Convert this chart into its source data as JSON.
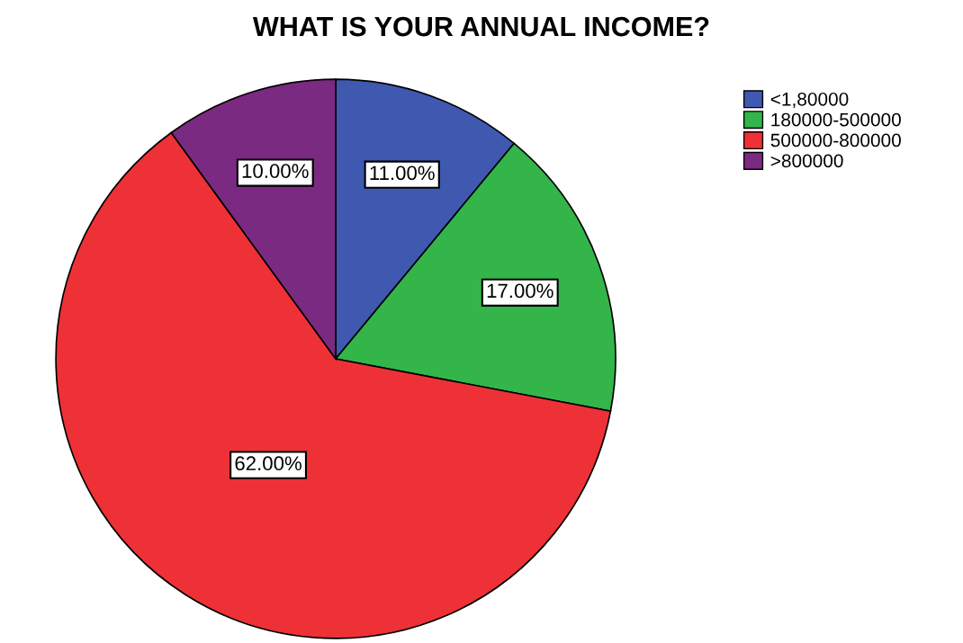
{
  "chart_data": {
    "type": "pie",
    "title": "WHAT IS YOUR ANNUAL INCOME?",
    "categories": [
      "<1,80000",
      "180000-500000",
      "500000-800000",
      ">800000"
    ],
    "values": [
      11,
      17,
      62,
      10
    ],
    "value_labels": [
      "11.00%",
      "17.00%",
      "62.00%",
      "10.00%"
    ],
    "colors": [
      "#3f58b0",
      "#33b54a",
      "#ee3137",
      "#7b2a82"
    ],
    "legend": "top right"
  }
}
